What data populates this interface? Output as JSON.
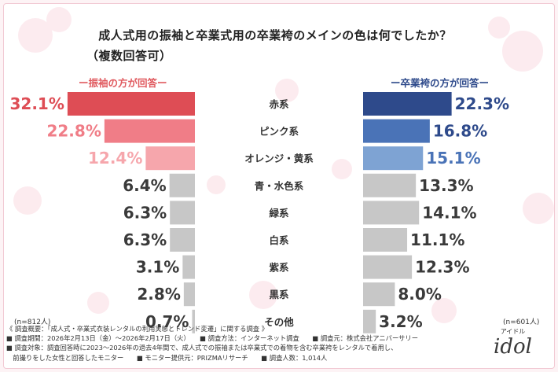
{
  "title": "成人式用の振袖と卒業式用の卒業袴のメインの色は何でしたか？",
  "subtitle": "（複数回答可）",
  "legend_left": "ー振袖の方が回答ー",
  "legend_right": "ー卒業袴の方が回答ー",
  "n_left": "(n=812人)",
  "n_right": "(n=601人)",
  "colors": {
    "left": [
      "#de4d55",
      "#f07d87",
      "#f6a6ac",
      "#c7c7c7",
      "#c7c7c7",
      "#c7c7c7",
      "#c7c7c7",
      "#c7c7c7",
      "#c7c7c7"
    ],
    "right": [
      "#2e4a8b",
      "#4a73b7",
      "#7ea3d3",
      "#c7c7c7",
      "#c7c7c7",
      "#c7c7c7",
      "#c7c7c7",
      "#c7c7c7",
      "#c7c7c7"
    ],
    "label_left": [
      "#de4d55",
      "#f07d87",
      "#f6a6ac",
      "#3a3a3a",
      "#3a3a3a",
      "#3a3a3a",
      "#3a3a3a",
      "#3a3a3a",
      "#3a3a3a"
    ],
    "label_right": [
      "#2e4a8b",
      "#2e4a8b",
      "#4a73b7",
      "#3a3a3a",
      "#3a3a3a",
      "#3a3a3a",
      "#3a3a3a",
      "#3a3a3a",
      "#3a3a3a"
    ]
  },
  "chart_data": {
    "type": "bar",
    "categories": [
      "赤系",
      "ピンク系",
      "オレンジ・黄系",
      "青・水色系",
      "緑系",
      "白系",
      "紫系",
      "黒系",
      "その他"
    ],
    "series": [
      {
        "name": "ー振袖の方が回答ー",
        "values": [
          32.1,
          22.8,
          12.4,
          6.4,
          6.3,
          6.3,
          3.1,
          2.8,
          0.7
        ]
      },
      {
        "name": "ー卒業袴の方が回答ー",
        "values": [
          22.3,
          16.8,
          15.1,
          13.3,
          14.1,
          11.1,
          12.3,
          8.0,
          3.2
        ]
      }
    ],
    "value_labels": {
      "left": [
        "32.1%",
        "22.8%",
        "12.4%",
        "6.4%",
        "6.3%",
        "6.3%",
        "3.1%",
        "2.8%",
        "0.7%"
      ],
      "right": [
        "22.3%",
        "16.8%",
        "15.1%",
        "13.3%",
        "14.1%",
        "11.1%",
        "12.3%",
        "8.0%",
        "3.2%"
      ]
    },
    "title": "成人式用の振袖と卒業式用の卒業袴のメインの色は何でしたか？",
    "xlabel": "",
    "ylabel": "",
    "xlim": [
      0,
      35
    ],
    "grid": false,
    "legend": "top"
  },
  "footer": {
    "line1": "《 調査概要：「成人式・卒業式衣装レンタルの利用実態とトレンド変遷」に関する調査 》",
    "line2": "■ 調査期間：2026年2月13日（金）～2026年2月17日（火）　　■ 調査方法：インターネット調査　　■ 調査元：株式会社アニバーサリー",
    "line3": "■ 調査対象：調査回答時に2023～2026年の過去4年間で、成人式での振袖または卒業式での着物を含む卒業袴をレンタルで着用し、",
    "line4": "　前撮りをした女性と回答したモニター　　■ モニター提供元：PRIZMAリサーチ　　■ 調査人数：1,014人"
  },
  "logo": {
    "top": "アイドル",
    "main": "idol"
  }
}
